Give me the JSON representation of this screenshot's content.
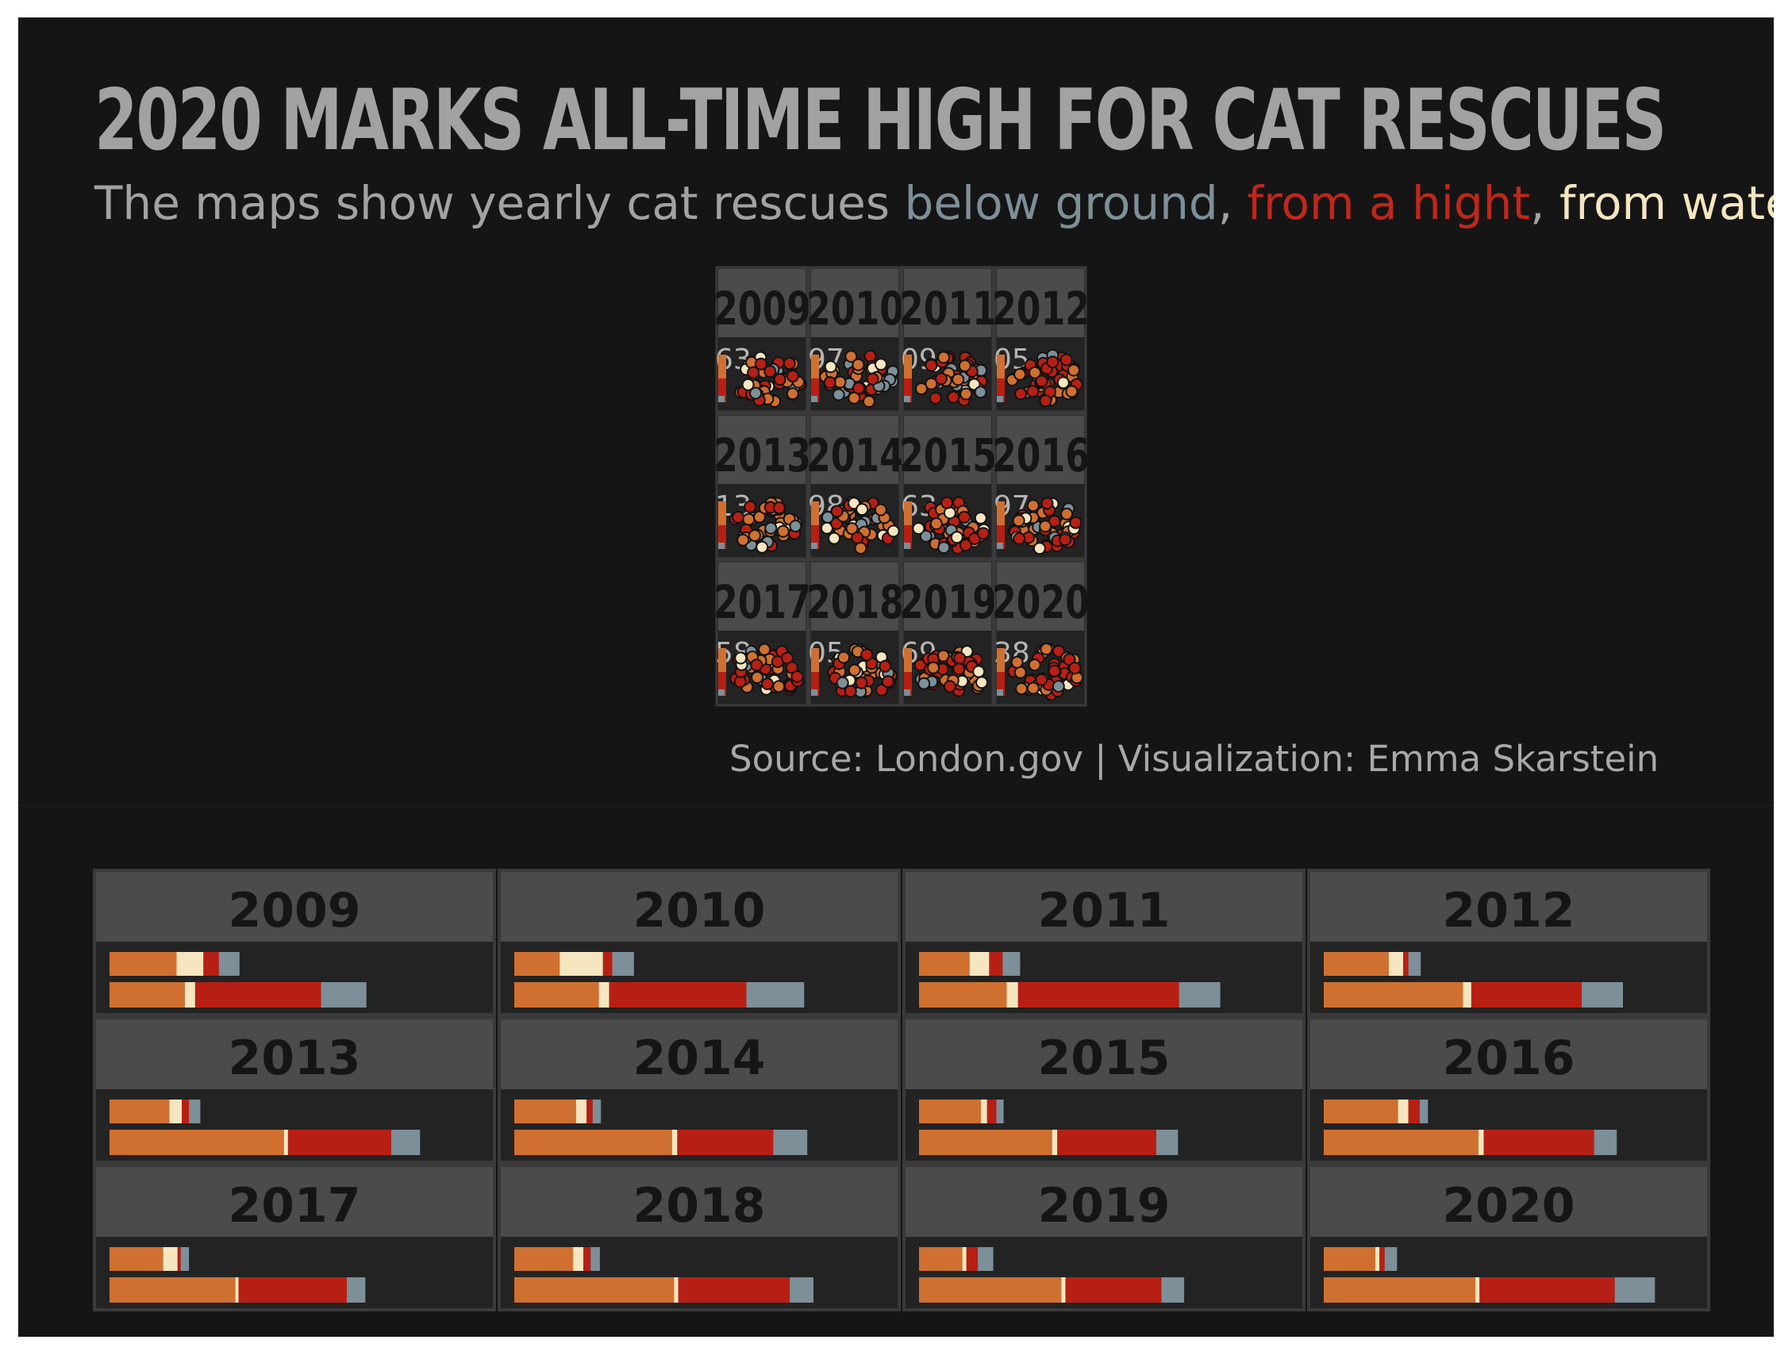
{
  "title": "2020 MARKS ALL-TIME HIGH FOR CAT RESCUES",
  "subtitle": {
    "intro": "The maps show yearly cat rescues ",
    "below_ground": "below ground",
    "sep1": ", ",
    "from_height": "from a hight",
    "sep2": ", ",
    "from_water": "from water"
  },
  "source": "Source: London.gov  |  Visualization: Emma Skarstein",
  "colors": {
    "background": "#151515",
    "panel_header": "#4b4b4b",
    "panel_body": "#232323",
    "panel_border": "#3a3a3a",
    "title_text": "#a2a2a2",
    "below_ground": "#7d8f98",
    "from_height": "#b81f14",
    "from_water": "#f5e6c0",
    "other": "#d07030"
  },
  "chart_data": [
    {
      "type": "scatter",
      "description": "small multiples of rescue locations per year",
      "panels": [
        {
          "year": "2009",
          "count_label": "63"
        },
        {
          "year": "2010",
          "count_label": "97"
        },
        {
          "year": "2011",
          "count_label": "09"
        },
        {
          "year": "2012",
          "count_label": "05"
        },
        {
          "year": "2013",
          "count_label": "13"
        },
        {
          "year": "2014",
          "count_label": "98"
        },
        {
          "year": "2015",
          "count_label": "63"
        },
        {
          "year": "2016",
          "count_label": "97"
        },
        {
          "year": "2017",
          "count_label": "58"
        },
        {
          "year": "2018",
          "count_label": "05"
        },
        {
          "year": "2019",
          "count_label": "69"
        },
        {
          "year": "2020",
          "count_label": "38"
        }
      ],
      "series": [
        {
          "name": "below ground",
          "color": "#7d8f98"
        },
        {
          "name": "from a hight",
          "color": "#b81f14"
        },
        {
          "name": "from water",
          "color": "#f5e6c0"
        },
        {
          "color": "#d07030"
        }
      ]
    },
    {
      "type": "bar",
      "orientation": "horizontal stacked",
      "segment_order": [
        "other",
        "from water",
        "from a hight",
        "below ground"
      ],
      "panels": [
        {
          "year": "2009",
          "row1": [
            65,
            26,
            15,
            20
          ],
          "row2": [
            73,
            10,
            122,
            44
          ]
        },
        {
          "year": "2010",
          "row1": [
            44,
            42,
            9,
            21
          ],
          "row2": [
            82,
            10,
            133,
            56
          ]
        },
        {
          "year": "2011",
          "row1": [
            49,
            19,
            13,
            17
          ],
          "row2": [
            85,
            11,
            156,
            40
          ]
        },
        {
          "year": "2012",
          "row1": [
            63,
            14,
            5,
            12
          ],
          "row2": [
            135,
            8,
            107,
            40
          ]
        },
        {
          "year": "2013",
          "row1": [
            58,
            12,
            7,
            11
          ],
          "row2": [
            169,
            4,
            100,
            28
          ]
        },
        {
          "year": "2014",
          "row1": [
            60,
            10,
            6,
            8
          ],
          "row2": [
            153,
            5,
            93,
            33
          ]
        },
        {
          "year": "2015",
          "row1": [
            60,
            6,
            9,
            7
          ],
          "row2": [
            129,
            5,
            96,
            21
          ]
        },
        {
          "year": "2016",
          "row1": [
            72,
            10,
            11,
            8
          ],
          "row2": [
            150,
            5,
            107,
            22
          ]
        },
        {
          "year": "2017",
          "row1": [
            52,
            14,
            3,
            8
          ],
          "row2": [
            122,
            3,
            105,
            18
          ]
        },
        {
          "year": "2018",
          "row1": [
            57,
            10,
            7,
            9
          ],
          "row2": [
            155,
            4,
            108,
            23
          ]
        },
        {
          "year": "2019",
          "row1": [
            42,
            4,
            11,
            15
          ],
          "row2": [
            138,
            4,
            93,
            22
          ]
        },
        {
          "year": "2020",
          "row1": [
            50,
            4,
            5,
            12
          ],
          "row2": [
            147,
            4,
            131,
            39
          ]
        }
      ]
    }
  ]
}
